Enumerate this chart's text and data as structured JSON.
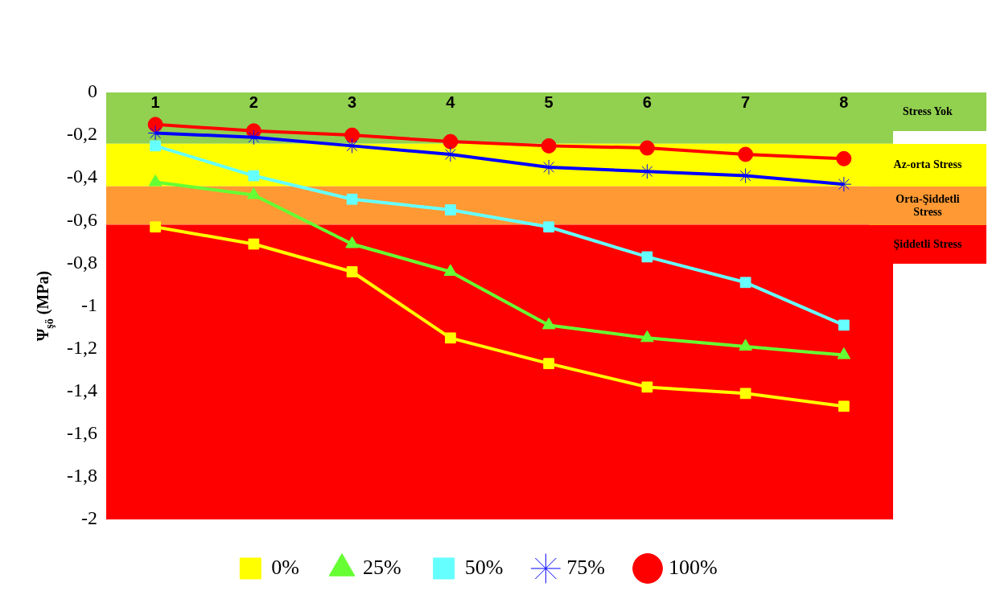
{
  "chart_data": {
    "type": "line",
    "ylabel": "Ψ$_{şö}$ (MPa)",
    "categories": [
      "1",
      "2",
      "3",
      "4",
      "5",
      "6",
      "7",
      "8"
    ],
    "ylim": [
      -2,
      0
    ],
    "yticks": [
      0,
      {
        "value": -0.2,
        "label": "-0,2"
      },
      {
        "value": -0.4,
        "label": "-0,4"
      },
      {
        "value": -0.6,
        "label": "-0,6"
      },
      {
        "value": -0.8,
        "label": "-0,8"
      },
      -1,
      {
        "value": -1.2,
        "label": "-1,2"
      },
      {
        "value": -1.4,
        "label": "-1,4"
      },
      {
        "value": -1.6,
        "label": "-1,6"
      },
      {
        "value": -1.8,
        "label": "-1,8"
      },
      -2
    ],
    "grid": false,
    "legend": "bottom",
    "bands": [
      {
        "axis": "y",
        "from": 0,
        "to": -0.24,
        "label": "Stress Yok",
        "color": "#92d050"
      },
      {
        "axis": "y",
        "from": -0.24,
        "to": -0.44,
        "label": "Az-orta Stress",
        "color": "#ffff00"
      },
      {
        "axis": "y",
        "from": -0.44,
        "to": -0.62,
        "label": "Orta-Şiddetli Stress",
        "color": "#ff9933"
      },
      {
        "axis": "y",
        "from": -0.62,
        "to": -2,
        "label": "Şiddetli Stress",
        "color": "#ff0000"
      }
    ],
    "series": [
      {
        "name": "0%",
        "color": "#ffff00",
        "marker": "square",
        "values": [
          -0.63,
          -0.71,
          -0.84,
          -1.15,
          -1.27,
          -1.38,
          -1.41,
          -1.47
        ]
      },
      {
        "name": "25%",
        "color": "#66ff33",
        "marker": "triangle",
        "values": [
          -0.42,
          -0.48,
          -0.71,
          -0.84,
          -1.09,
          -1.15,
          -1.19,
          -1.23
        ]
      },
      {
        "name": "50%",
        "color": "#66ffff",
        "marker": "square",
        "values": [
          -0.25,
          -0.39,
          -0.5,
          -0.55,
          -0.63,
          -0.77,
          -0.89,
          -1.09
        ]
      },
      {
        "name": "75%",
        "color": "#0000ff",
        "marker": "cross",
        "values": [
          -0.19,
          -0.21,
          -0.25,
          -0.29,
          -0.35,
          -0.37,
          -0.39,
          -0.43
        ]
      },
      {
        "name": "100%",
        "color": "#ff0000",
        "marker": "circle",
        "values": [
          -0.15,
          -0.18,
          -0.2,
          -0.23,
          -0.25,
          -0.26,
          -0.29,
          -0.31
        ]
      }
    ]
  }
}
